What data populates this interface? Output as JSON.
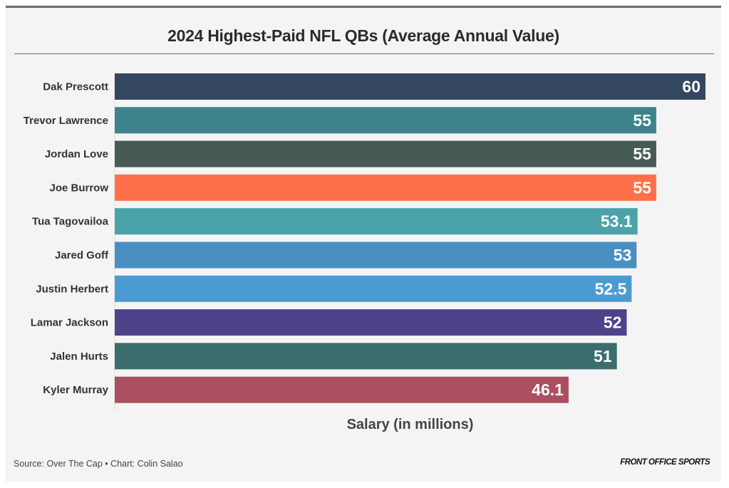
{
  "chart_data": {
    "type": "bar",
    "orientation": "horizontal",
    "title": "2024 Highest-Paid NFL QBs (Average Annual Value)",
    "xlabel": "Salary (in millions)",
    "ylabel": "",
    "xlim": [
      0,
      60
    ],
    "grid": false,
    "categories": [
      "Dak Prescott",
      "Trevor Lawrence",
      "Jordan Love",
      "Joe Burrow",
      "Tua Tagovailoa",
      "Jared Goff",
      "Justin Herbert",
      "Lamar Jackson",
      "Jalen Hurts",
      "Kyler Murray"
    ],
    "values": [
      60,
      55,
      55,
      55,
      53.1,
      53,
      52.5,
      52,
      51,
      46.1
    ],
    "colors": [
      "#33475f",
      "#3d838b",
      "#485a56",
      "#ff704a",
      "#4aa3a8",
      "#4a8fc2",
      "#4b9bd3",
      "#4f418a",
      "#3a6d6c",
      "#ab4f60"
    ]
  },
  "footer": {
    "source": "Source: Over The Cap • Chart: Colin Salao",
    "brand": "FRONT OFFICE SPORTS"
  }
}
